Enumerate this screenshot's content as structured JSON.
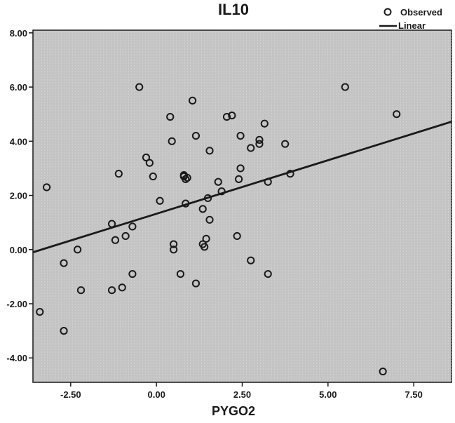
{
  "chart_data": {
    "type": "scatter",
    "title": "IL10",
    "xlabel": "PYGO2",
    "ylabel": "",
    "xlim": [
      -3.6,
      8.6
    ],
    "ylim": [
      -4.9,
      8.1
    ],
    "xticks": [
      -2.5,
      0.0,
      2.5,
      5.0,
      7.5
    ],
    "xtick_labels": [
      "-2.50",
      "0.00",
      "2.50",
      "5.00",
      "7.50"
    ],
    "yticks": [
      -4.0,
      -2.0,
      0.0,
      2.0,
      4.0,
      6.0,
      8.0
    ],
    "ytick_labels": [
      "-4.00",
      "-2.00",
      "0.00",
      "2.00",
      "4.00",
      "6.00",
      "8.00"
    ],
    "grid": false,
    "legend": {
      "placement": "top-right",
      "entries": [
        "Observed",
        "Linear"
      ]
    },
    "series": [
      {
        "name": "Observed",
        "kind": "points",
        "x": [
          -3.2,
          -3.4,
          -2.7,
          -2.7,
          -2.3,
          -2.2,
          -1.3,
          -1.2,
          -1.1,
          -1.3,
          -1.0,
          -0.9,
          -0.7,
          -0.7,
          -0.5,
          -0.3,
          -0.2,
          -0.1,
          0.1,
          0.4,
          0.45,
          0.5,
          0.5,
          0.7,
          0.8,
          0.8,
          0.85,
          0.9,
          0.85,
          1.05,
          1.15,
          1.15,
          1.35,
          1.35,
          1.4,
          1.45,
          1.5,
          1.55,
          1.55,
          1.8,
          1.9,
          2.05,
          2.2,
          2.35,
          2.4,
          2.45,
          2.45,
          2.75,
          2.75,
          3.0,
          3.0,
          3.15,
          3.25,
          3.25,
          3.75,
          3.9,
          5.5,
          6.6,
          7.0
        ],
        "y": [
          2.3,
          -2.3,
          -3.0,
          -0.5,
          0.0,
          -1.5,
          0.95,
          0.35,
          2.8,
          -1.5,
          -1.4,
          0.5,
          0.85,
          -0.9,
          6.0,
          3.4,
          3.2,
          2.7,
          1.8,
          4.9,
          4.0,
          0.2,
          0.0,
          -0.9,
          2.7,
          2.75,
          1.7,
          2.65,
          2.6,
          5.5,
          4.2,
          -1.25,
          1.5,
          0.2,
          0.1,
          0.4,
          1.9,
          3.65,
          1.1,
          2.5,
          2.15,
          4.9,
          4.95,
          0.5,
          2.6,
          4.2,
          3.0,
          3.75,
          -0.4,
          4.05,
          3.9,
          4.65,
          2.5,
          -0.9,
          3.9,
          2.8,
          6.0,
          -4.5,
          5.0
        ]
      },
      {
        "name": "Linear",
        "kind": "line",
        "x": [
          -3.6,
          8.6
        ],
        "y": [
          -0.1,
          4.72
        ]
      }
    ]
  }
}
